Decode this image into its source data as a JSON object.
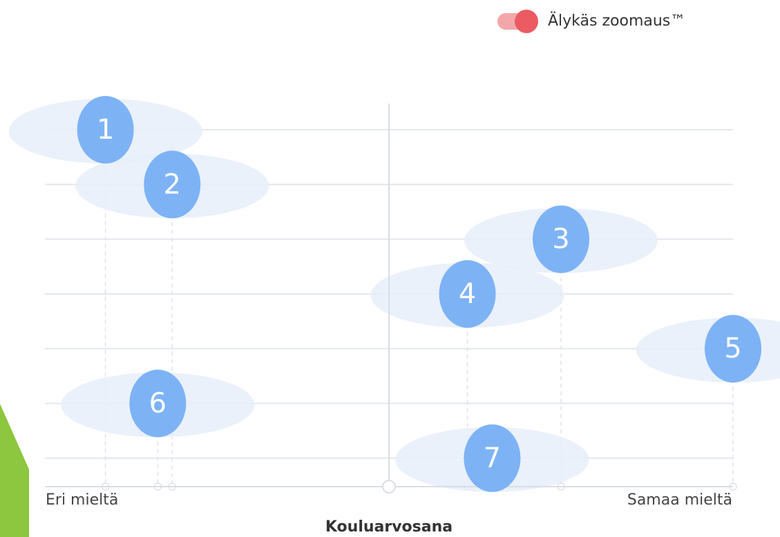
{
  "chart_data": {
    "type": "dot",
    "toggle_label": "Älykäs zoomaus™",
    "x_min_label": "Eri mieltä",
    "x_max_label": "Samaa mieltä",
    "xlabel": "Kouluarvosana",
    "categories": [
      "1",
      "2",
      "3",
      "4",
      "5",
      "6",
      "7"
    ],
    "values": [
      8.8,
      18.5,
      75.0,
      61.4,
      100,
      16.4,
      65.0
    ],
    "xlim": [
      0,
      100
    ],
    "color": "#7db3f5",
    "halo_color": "#e6effa"
  }
}
